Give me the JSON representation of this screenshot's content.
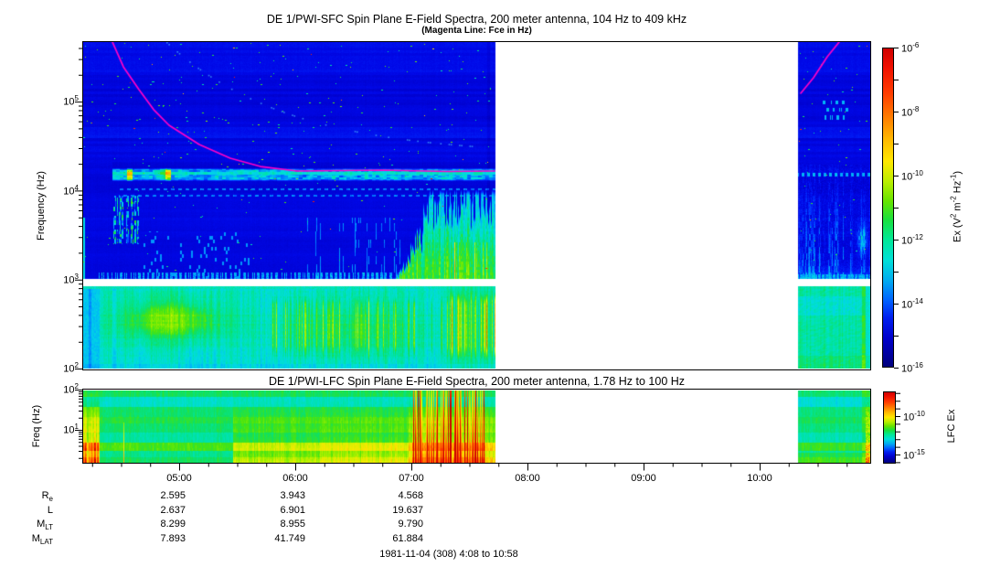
{
  "header": {
    "title_sfc": "DE 1/PWI-SFC  Spin Plane E-Field Spectra, 200 meter antenna, 104 Hz to 409 kHz",
    "subtitle": "(Magenta Line: Fce in Hz)",
    "title_lfc": "DE 1/PWI-LFC  Spin Plane E-Field Spectra, 200 meter antenna, 1.78 Hz to 100 Hz"
  },
  "footer": {
    "date_range": "1981-11-04 (308) 4:08 to 10:58"
  },
  "chart_data": {
    "type": "heatmap",
    "title": "DE 1/PWI-SFC Spin Plane E-Field Spectra, 200 meter antenna, 104 Hz to 409 kHz",
    "time_axis": {
      "labels": [
        "05:00",
        "06:00",
        "07:00",
        "08:00",
        "09:00",
        "10:00"
      ],
      "hours": [
        5,
        6,
        7,
        8,
        9,
        10
      ],
      "start": "4:08",
      "end": "10:58",
      "minor_tick_minutes": 15
    },
    "data_segments_hours": [
      [
        4.173,
        7.717
      ],
      [
        10.331,
        10.949
      ]
    ],
    "data_gap": {
      "start": "07:43",
      "end": "10:20"
    },
    "sfc": {
      "ylabel": "Frequency (Hz)",
      "freq_ticks": [
        5,
        4,
        3,
        2
      ],
      "freq_range_hz": [
        104,
        409000
      ]
    },
    "lfc": {
      "ylabel": "Freq (Hz)",
      "freq_ticks": [
        2,
        1
      ],
      "freq_range_hz": [
        1.78,
        100
      ],
      "strata": [
        [
          2,
          1.84,
          0.56
        ],
        [
          1.84,
          1.57,
          0.46
        ],
        [
          1.57,
          1.34,
          0.55
        ],
        [
          1.34,
          1.18,
          0.58
        ],
        [
          1.18,
          0.95,
          0.55
        ],
        [
          0.95,
          0.7,
          0.5
        ],
        [
          0.7,
          0.48,
          0.62
        ],
        [
          0.48,
          0.34,
          0.52
        ],
        [
          0.34,
          0.18,
          0.56
        ]
      ],
      "boost_zones": [
        [
          5.46,
          6.21,
          0.16
        ],
        [
          6.21,
          6.97,
          0.2
        ],
        [
          6.97,
          7.72,
          0.26
        ]
      ],
      "red_streaks_t": [
        7.0,
        7.63
      ],
      "left_edge_t": 4.31
    },
    "colorbars": [
      {
        "label_parts": [
          [
            "Ex (V",
            ""
          ],
          [
            "2",
            "sup"
          ],
          [
            " m",
            ""
          ],
          [
            "-2",
            "sup"
          ],
          [
            " Hz",
            ""
          ],
          [
            "-1",
            "sup"
          ],
          [
            ")",
            ""
          ]
        ],
        "label_text": "Ex (V2 m-2 Hz-1)",
        "tick_exponents": [
          -6,
          -8,
          -10,
          -12,
          -14,
          -16
        ]
      },
      {
        "label": "LFC Ex",
        "tick_exponents": [
          -10,
          -15
        ]
      }
    ],
    "colormap": {
      "stops": [
        [
          0,
          "#000082"
        ],
        [
          0.07,
          "#0000c8"
        ],
        [
          0.13,
          "#0008e8"
        ],
        [
          0.2,
          "#0030ff"
        ],
        [
          0.28,
          "#0078ff"
        ],
        [
          0.36,
          "#00b4f8"
        ],
        [
          0.43,
          "#00dce0"
        ],
        [
          0.5,
          "#00e4a0"
        ],
        [
          0.56,
          "#10e060"
        ],
        [
          0.62,
          "#48e410"
        ],
        [
          0.68,
          "#90ee00"
        ],
        [
          0.74,
          "#d8f000"
        ],
        [
          0.79,
          "#ffe400"
        ],
        [
          0.85,
          "#ffa800"
        ],
        [
          0.91,
          "#ff5c00"
        ],
        [
          0.96,
          "#f81e00"
        ],
        [
          1,
          "#cc0000"
        ]
      ]
    },
    "colorbar_stops": [
      [
        0,
        "#00007d"
      ],
      [
        0.09,
        "#0000cc"
      ],
      [
        0.155,
        "#0020f0"
      ],
      [
        0.21,
        "#0064ff"
      ],
      [
        0.27,
        "#00aaf0"
      ],
      [
        0.335,
        "#00e0d8"
      ],
      [
        0.4,
        "#00e896"
      ],
      [
        0.46,
        "#18e040"
      ],
      [
        0.52,
        "#66e400"
      ],
      [
        0.58,
        "#b8ee00"
      ],
      [
        0.645,
        "#ffe800"
      ],
      [
        0.71,
        "#ffbc00"
      ],
      [
        0.78,
        "#ff8000"
      ],
      [
        0.86,
        "#ff3c00"
      ],
      [
        0.94,
        "#f01000"
      ],
      [
        1,
        "#cf0000"
      ]
    ],
    "fce_line": {
      "color": "#ff00c8",
      "left_points": [
        [
          4.425,
          5.67
        ],
        [
          4.52,
          5.39
        ],
        [
          4.654,
          5.135
        ],
        [
          4.78,
          4.91
        ],
        [
          4.913,
          4.734
        ],
        [
          5.173,
          4.518
        ],
        [
          5.44,
          4.364
        ],
        [
          5.7,
          4.271
        ],
        [
          6.016,
          4.22
        ],
        [
          6.76,
          4.23
        ],
        [
          7.3,
          4.215
        ],
        [
          7.717,
          4.22
        ]
      ],
      "right_points": [
        [
          10.354,
          5.094
        ],
        [
          10.464,
          5.268
        ],
        [
          10.583,
          5.505
        ],
        [
          10.685,
          5.67
        ]
      ]
    },
    "sfc_upper": {
      "background_v": 0.115,
      "hiss_band": {
        "lf": [
          4.11,
          4.255
        ],
        "t_start": 4.425,
        "v": 0.38,
        "hot_t_end": 5.2
      },
      "dotted_rows_lf": [
        [
          4.005,
          4.03
        ],
        [
          3.935,
          3.96
        ]
      ],
      "funnel": {
        "t_ramp": [
          6.78,
          7.3
        ],
        "lf_top": 4.03,
        "yellow_lf_max": 3.42,
        "yellow_t_start": 7.35
      },
      "left_cluster": {
        "t": [
          4.42,
          4.66
        ],
        "lf": [
          3.4,
          3.95
        ]
      },
      "bottom_band_lf": [
        3.005,
        3.085
      ],
      "diag_trace": {
        "t0": 4.89,
        "lf_base": 4.4,
        "amp": 1.27,
        "tau": 1.05
      }
    },
    "sfc_lower": {
      "background_v": 0.45,
      "blob1": {
        "t": 4.93,
        "lf": 2.55,
        "st": 0.5,
        "slf": 0.26,
        "amp": 0.18
      },
      "blob2": {
        "t": 6.45,
        "lf": 2.45,
        "st": 0.6,
        "slf": 0.33,
        "amp": 0.1
      },
      "hot_t": 7.3,
      "top_row_lf": 2.9,
      "left_edge_t": 4.31
    },
    "ephemeris": {
      "row_labels": [
        {
          "main": "R",
          "sub": "e"
        },
        {
          "main": "L",
          "sub": ""
        },
        {
          "main": "M",
          "sub": "LT"
        },
        {
          "main": "M",
          "sub": "LAT"
        }
      ],
      "columns_hours": [
        5,
        6,
        7
      ],
      "rows": [
        {
          "label": "Re",
          "values": [
            "2.595",
            "3.943",
            "4.568"
          ]
        },
        {
          "label": "L",
          "values": [
            "2.637",
            "6.901",
            "19.637"
          ]
        },
        {
          "label": "MLT",
          "values": [
            "8.299",
            "8.955",
            "9.790"
          ]
        },
        {
          "label": "MLAT",
          "values": [
            "7.893",
            "41.749",
            "61.884"
          ]
        }
      ]
    }
  }
}
